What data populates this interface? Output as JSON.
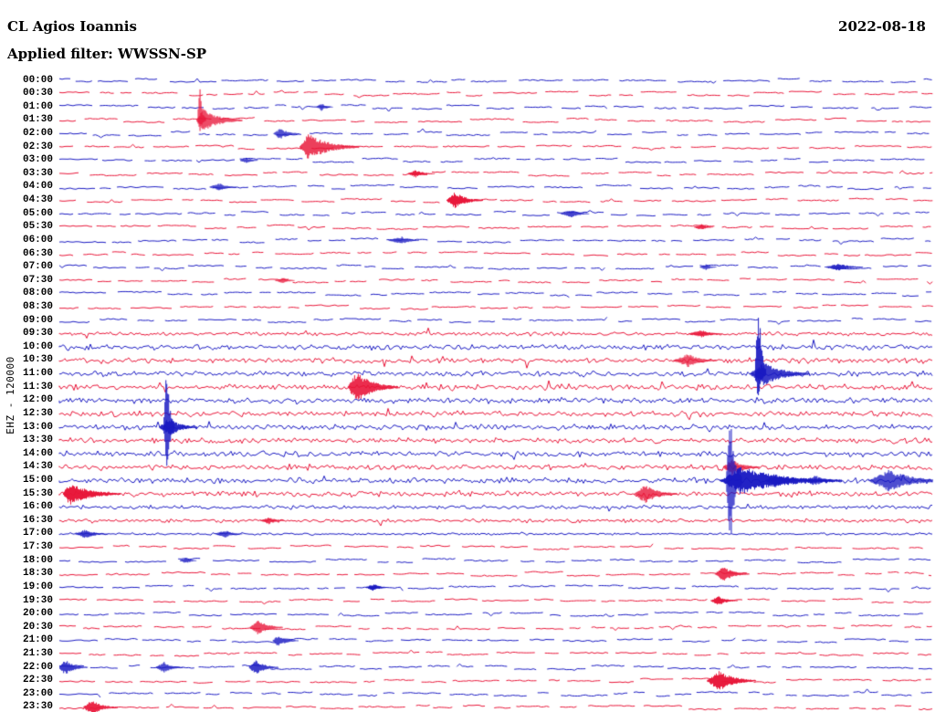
{
  "header": {
    "station": "CL Agios Ioannis",
    "date": "2022-08-18",
    "filter": "Applied filter: WWSSN-SP"
  },
  "chart_data": {
    "type": "line",
    "subtype": "seismogram-helicorder",
    "title": "CL Agios Ioannis 2022-08-18 (EHZ, WWSSN-SP filter)",
    "ylabel": "EHZ - 120000",
    "minutes_per_row": 30,
    "seed": 7,
    "colors": {
      "even_row_blue": "#1a1ac2",
      "odd_row_red": "#e81538",
      "text": "#000000",
      "background": "#ffffff"
    },
    "row_labels": [
      "00:00",
      "00:30",
      "01:00",
      "01:30",
      "02:00",
      "02:30",
      "03:00",
      "03:30",
      "04:00",
      "04:30",
      "05:00",
      "05:30",
      "06:00",
      "06:30",
      "07:00",
      "07:30",
      "08:00",
      "08:30",
      "09:00",
      "09:30",
      "10:00",
      "10:30",
      "11:00",
      "11:30",
      "12:00",
      "12:30",
      "13:00",
      "13:30",
      "14:00",
      "14:30",
      "15:00",
      "15:30",
      "16:00",
      "16:30",
      "17:00",
      "17:30",
      "18:00",
      "18:30",
      "19:00",
      "19:30",
      "20:00",
      "20:30",
      "21:00",
      "21:30",
      "22:00",
      "22:30",
      "23:00",
      "23:30"
    ],
    "activity": {
      "strong": [
        20,
        21,
        22,
        23,
        24,
        25,
        26,
        27,
        28,
        29,
        30,
        31
      ],
      "high": [
        19,
        32,
        33
      ],
      "medium": [
        34
      ]
    },
    "events": [
      {
        "row": 2,
        "x": 0.3,
        "amp": 4,
        "w": 6,
        "coda": 14
      },
      {
        "row": 3,
        "x": 0.161,
        "amp": 16,
        "w": 3,
        "coda": 6,
        "up": 2.2,
        "dn": 0.7
      },
      {
        "row": 3,
        "x": 0.165,
        "amp": 12,
        "w": 8,
        "coda": 42
      },
      {
        "row": 4,
        "x": 0.253,
        "amp": 6,
        "w": 8,
        "coda": 20
      },
      {
        "row": 5,
        "x": 0.285,
        "amp": 14,
        "w": 10,
        "coda": 55
      },
      {
        "row": 6,
        "x": 0.214,
        "amp": 3,
        "w": 8,
        "coda": 16
      },
      {
        "row": 7,
        "x": 0.408,
        "amp": 4,
        "w": 10,
        "coda": 22
      },
      {
        "row": 8,
        "x": 0.183,
        "amp": 4,
        "w": 12,
        "coda": 20
      },
      {
        "row": 9,
        "x": 0.453,
        "amp": 9,
        "w": 10,
        "coda": 30
      },
      {
        "row": 10,
        "x": 0.587,
        "amp": 4,
        "w": 14,
        "coda": 20
      },
      {
        "row": 11,
        "x": 0.735,
        "amp": 3,
        "w": 10,
        "coda": 16
      },
      {
        "row": 12,
        "x": 0.392,
        "amp": 4,
        "w": 16,
        "coda": 20
      },
      {
        "row": 14,
        "x": 0.74,
        "amp": 3,
        "w": 8,
        "coda": 14
      },
      {
        "row": 14,
        "x": 0.893,
        "amp": 4,
        "w": 18,
        "coda": 28
      },
      {
        "row": 15,
        "x": 0.256,
        "amp": 3,
        "w": 10,
        "coda": 16
      },
      {
        "row": 19,
        "x": 0.735,
        "amp": 4,
        "w": 16,
        "coda": 24
      },
      {
        "row": 21,
        "x": 0.72,
        "amp": 7,
        "w": 18,
        "coda": 30
      },
      {
        "row": 22,
        "x": 0.8,
        "amp": 60,
        "w": 4,
        "coda": 8,
        "up": 1.6,
        "dn": 0.5
      },
      {
        "row": 22,
        "x": 0.806,
        "amp": 13,
        "w": 16,
        "coda": 50
      },
      {
        "row": 23,
        "x": 0.34,
        "amp": 16,
        "w": 10,
        "coda": 45
      },
      {
        "row": 26,
        "x": 0.123,
        "amp": 60,
        "w": 4,
        "coda": 8,
        "up": 1.2,
        "dn": 0.85
      },
      {
        "row": 26,
        "x": 0.126,
        "amp": 10,
        "w": 12,
        "coda": 30
      },
      {
        "row": 29,
        "x": 0.77,
        "amp": 9,
        "w": 10,
        "coda": 30
      },
      {
        "row": 30,
        "x": 0.768,
        "amp": 70,
        "w": 5,
        "coda": 12
      },
      {
        "row": 30,
        "x": 0.78,
        "amp": 15,
        "w": 24,
        "coda": 110
      },
      {
        "row": 30,
        "x": 0.82,
        "amp": 8,
        "w": 12,
        "coda": 28
      },
      {
        "row": 30,
        "x": 0.865,
        "amp": 6,
        "w": 12,
        "coda": 24
      },
      {
        "row": 30,
        "x": 0.95,
        "amp": 12,
        "w": 24,
        "coda": 60
      },
      {
        "row": 31,
        "x": 0.012,
        "amp": 12,
        "w": 8,
        "coda": 55
      },
      {
        "row": 31,
        "x": 0.67,
        "amp": 10,
        "w": 12,
        "coda": 35
      },
      {
        "row": 33,
        "x": 0.24,
        "amp": 4,
        "w": 10,
        "coda": 18
      },
      {
        "row": 34,
        "x": 0.03,
        "amp": 5,
        "w": 12,
        "coda": 24
      },
      {
        "row": 34,
        "x": 0.19,
        "amp": 4,
        "w": 12,
        "coda": 20
      },
      {
        "row": 36,
        "x": 0.145,
        "amp": 3,
        "w": 8,
        "coda": 14
      },
      {
        "row": 37,
        "x": 0.76,
        "amp": 8,
        "w": 10,
        "coda": 28
      },
      {
        "row": 38,
        "x": 0.36,
        "amp": 4,
        "w": 10,
        "coda": 16
      },
      {
        "row": 39,
        "x": 0.755,
        "amp": 5,
        "w": 10,
        "coda": 20
      },
      {
        "row": 41,
        "x": 0.228,
        "amp": 8,
        "w": 10,
        "coda": 26
      },
      {
        "row": 42,
        "x": 0.25,
        "amp": 6,
        "w": 6,
        "coda": 22
      },
      {
        "row": 44,
        "x": 0.007,
        "amp": 8,
        "w": 8,
        "coda": 24
      },
      {
        "row": 44,
        "x": 0.12,
        "amp": 6,
        "w": 10,
        "coda": 20
      },
      {
        "row": 44,
        "x": 0.225,
        "amp": 8,
        "w": 8,
        "coda": 24
      },
      {
        "row": 45,
        "x": 0.755,
        "amp": 11,
        "w": 14,
        "coda": 40
      },
      {
        "row": 47,
        "x": 0.037,
        "amp": 8,
        "w": 10,
        "coda": 28
      }
    ]
  }
}
